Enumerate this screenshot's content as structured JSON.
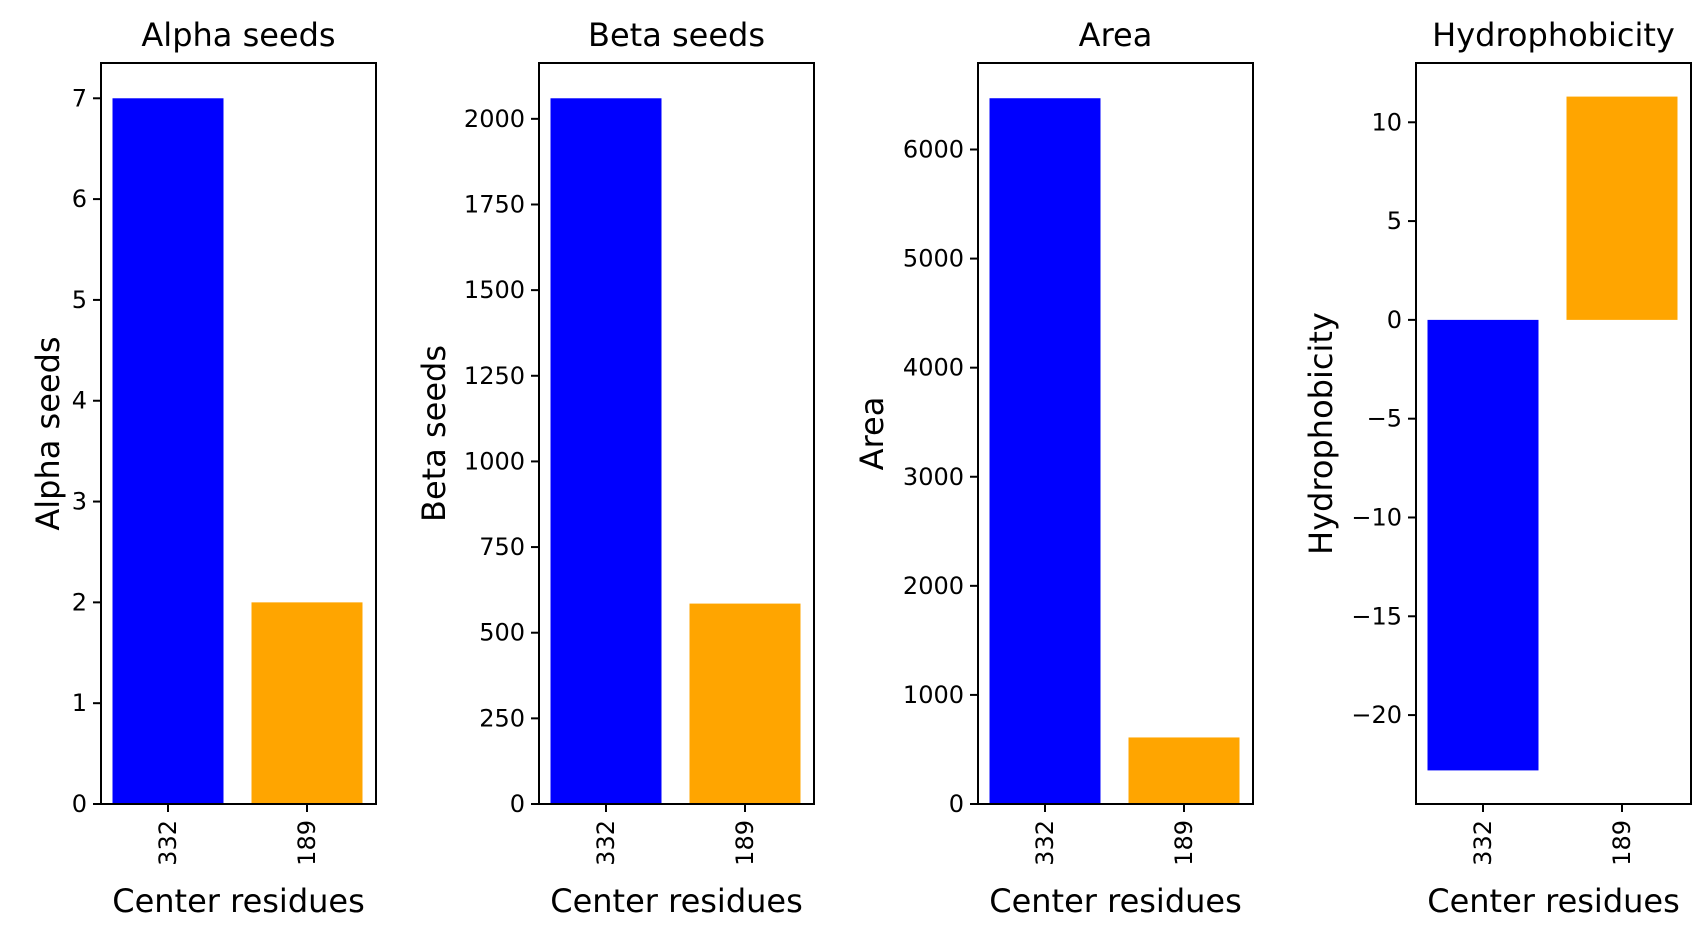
{
  "chart_data": [
    {
      "type": "bar",
      "title": "Alpha seeds",
      "xlabel": "Center residues",
      "ylabel": "Alpha seeds",
      "categories": [
        "332",
        "189"
      ],
      "values": [
        7,
        2
      ],
      "colors": [
        "#0000ff",
        "#ffa500"
      ],
      "ylim": [
        0,
        7.35
      ],
      "yticks": [
        0,
        1,
        2,
        3,
        4,
        5,
        6,
        7
      ],
      "ytick_labels": [
        "0",
        "1",
        "2",
        "3",
        "4",
        "5",
        "6",
        "7"
      ],
      "grid": false
    },
    {
      "type": "bar",
      "title": "Beta seeds",
      "xlabel": "Center residues",
      "ylabel": "Beta seeds",
      "categories": [
        "332",
        "189"
      ],
      "values": [
        2060,
        585
      ],
      "colors": [
        "#0000ff",
        "#ffa500"
      ],
      "ylim": [
        0,
        2163
      ],
      "yticks": [
        0,
        250,
        500,
        750,
        1000,
        1250,
        1500,
        1750,
        2000
      ],
      "ytick_labels": [
        "0",
        "250",
        "500",
        "750",
        "1000",
        "1250",
        "1500",
        "1750",
        "2000"
      ],
      "grid": false
    },
    {
      "type": "bar",
      "title": "Area",
      "xlabel": "Center residues",
      "ylabel": "Area",
      "categories": [
        "332",
        "189"
      ],
      "values": [
        6470,
        610
      ],
      "colors": [
        "#0000ff",
        "#ffa500"
      ],
      "ylim": [
        0,
        6793
      ],
      "yticks": [
        0,
        1000,
        2000,
        3000,
        4000,
        5000,
        6000
      ],
      "ytick_labels": [
        "0",
        "1000",
        "2000",
        "3000",
        "4000",
        "5000",
        "6000"
      ],
      "grid": false
    },
    {
      "type": "bar",
      "title": "Hydrophobicity",
      "xlabel": "Center residues",
      "ylabel": "Hydrophobicity",
      "categories": [
        "332",
        "189"
      ],
      "values": [
        -22.8,
        11.3
      ],
      "colors": [
        "#0000ff",
        "#ffa500"
      ],
      "ylim": [
        -24.5,
        13.0
      ],
      "yticks": [
        -20,
        -15,
        -10,
        -5,
        0,
        5,
        10
      ],
      "ytick_labels": [
        "−20",
        "−15",
        "−10",
        "−5",
        "0",
        "5",
        "10"
      ],
      "grid": false
    }
  ]
}
